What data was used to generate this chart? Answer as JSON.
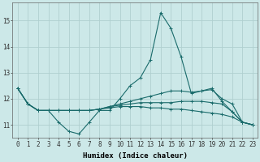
{
  "xlabel": "Humidex (Indice chaleur)",
  "background_color": "#cce8e8",
  "grid_color": "#b0d0d0",
  "line_color": "#1a6b6b",
  "x_values": [
    0,
    1,
    2,
    3,
    4,
    5,
    6,
    7,
    8,
    9,
    10,
    11,
    12,
    13,
    14,
    15,
    16,
    17,
    18,
    19,
    20,
    21,
    22,
    23
  ],
  "lines": [
    [
      12.4,
      11.8,
      11.55,
      11.55,
      11.1,
      10.75,
      10.65,
      11.1,
      11.55,
      11.55,
      12.0,
      12.5,
      12.8,
      13.5,
      15.3,
      14.7,
      13.6,
      12.2,
      12.3,
      12.4,
      11.9,
      11.5,
      11.1,
      11.0
    ],
    [
      12.4,
      11.8,
      11.55,
      11.55,
      11.55,
      11.55,
      11.55,
      11.55,
      11.6,
      11.7,
      11.8,
      11.9,
      12.0,
      12.1,
      12.2,
      12.3,
      12.3,
      12.25,
      12.3,
      12.35,
      12.0,
      11.8,
      11.1,
      11.0
    ],
    [
      12.4,
      11.8,
      11.55,
      11.55,
      11.55,
      11.55,
      11.55,
      11.55,
      11.6,
      11.7,
      11.75,
      11.8,
      11.85,
      11.85,
      11.85,
      11.85,
      11.9,
      11.9,
      11.9,
      11.85,
      11.8,
      11.5,
      11.1,
      11.0
    ],
    [
      12.4,
      11.8,
      11.55,
      11.55,
      11.55,
      11.55,
      11.55,
      11.55,
      11.6,
      11.65,
      11.7,
      11.7,
      11.7,
      11.65,
      11.65,
      11.6,
      11.6,
      11.55,
      11.5,
      11.45,
      11.4,
      11.3,
      11.1,
      11.0
    ]
  ],
  "ylim": [
    10.5,
    15.7
  ],
  "yticks": [
    11,
    12,
    13,
    14,
    15
  ],
  "xticks": [
    0,
    1,
    2,
    3,
    4,
    5,
    6,
    7,
    8,
    9,
    10,
    11,
    12,
    13,
    14,
    15,
    16,
    17,
    18,
    19,
    20,
    21,
    22,
    23
  ],
  "tick_fontsize": 5.5,
  "xlabel_fontsize": 6.5
}
